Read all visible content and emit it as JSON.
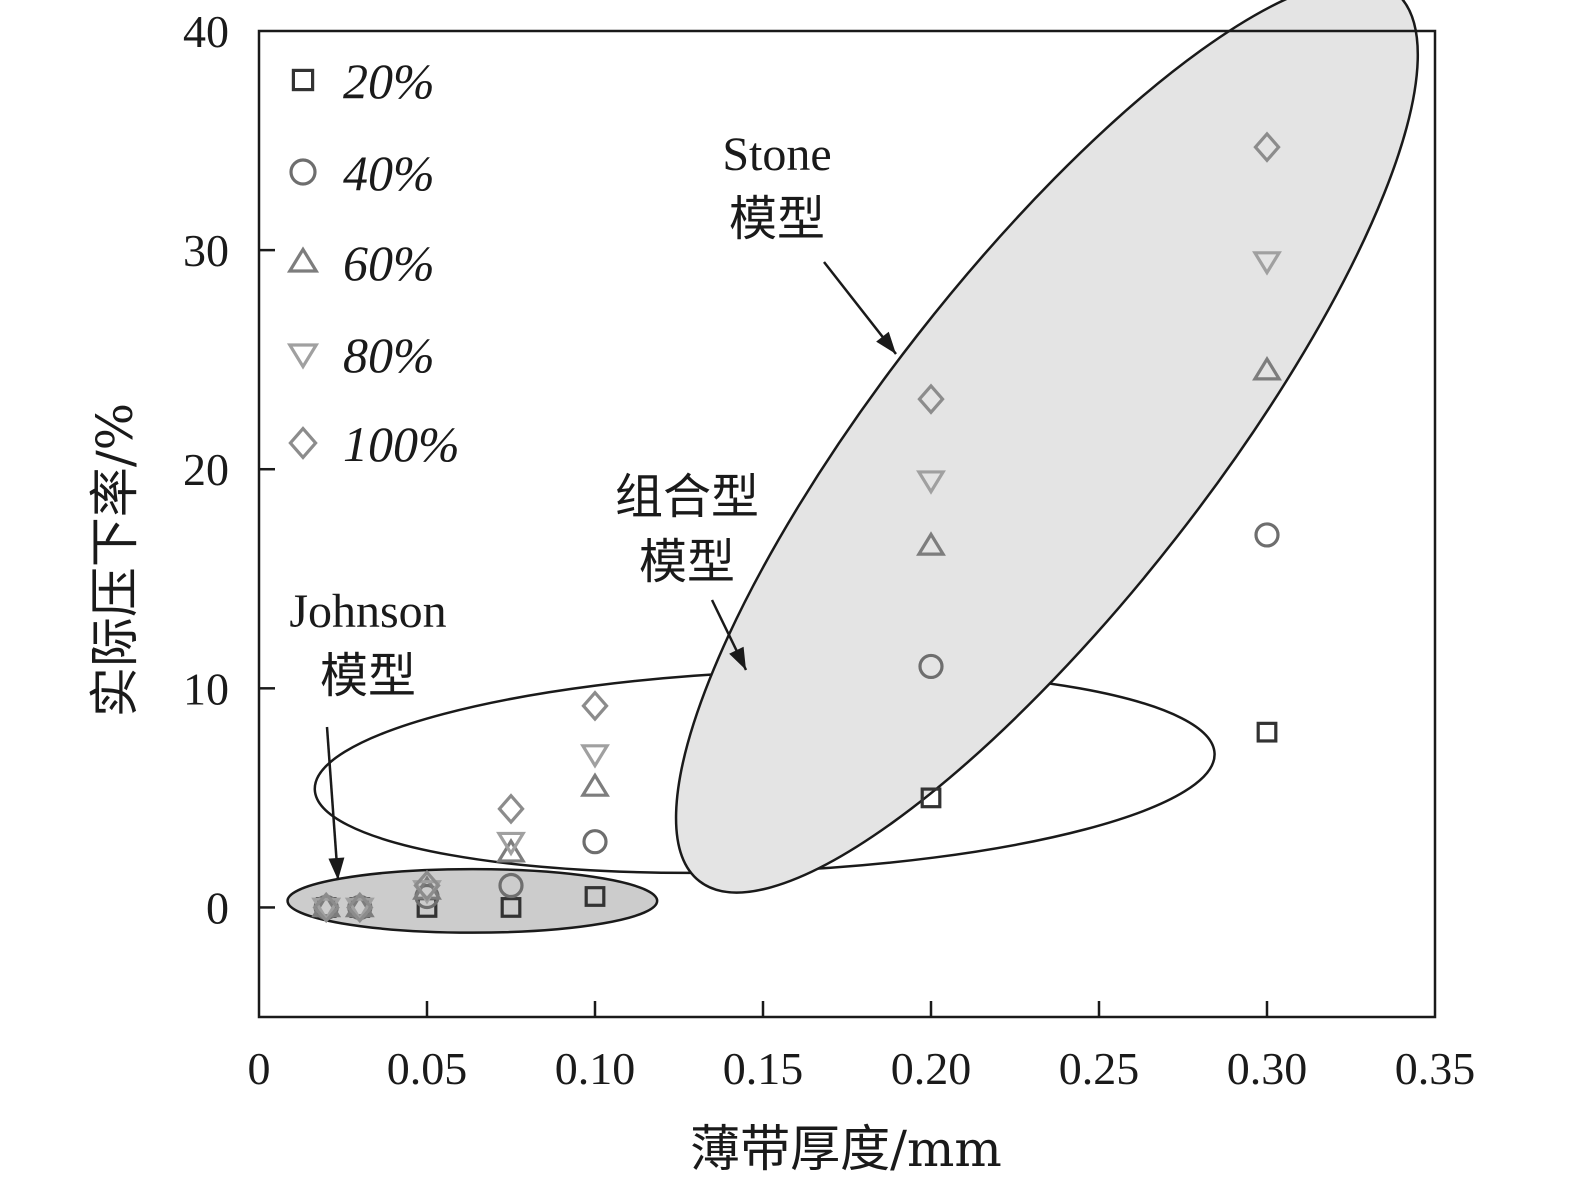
{
  "chart_data": {
    "type": "scatter",
    "xlabel": "薄带厚度/mm",
    "ylabel": "实际压下率/%",
    "xlim": [
      0,
      0.35
    ],
    "ylim": [
      -5,
      40
    ],
    "xticks": [
      "0",
      "0.05",
      "0.10",
      "0.15",
      "0.20",
      "0.25",
      "0.30",
      "0.35"
    ],
    "xtick_values": [
      0,
      0.05,
      0.1,
      0.15,
      0.2,
      0.25,
      0.3,
      0.35
    ],
    "yticks": [
      "0",
      "10",
      "20",
      "30",
      "40"
    ],
    "ytick_values": [
      0,
      10,
      20,
      30,
      40
    ],
    "grid": false,
    "legend_position": "top-left",
    "series": [
      {
        "name": "20%",
        "marker": "square",
        "color": "#333333",
        "x": [
          0.02,
          0.03,
          0.05,
          0.075,
          0.1,
          0.2,
          0.3
        ],
        "y": [
          0.0,
          0.0,
          0.0,
          0.0,
          0.5,
          5.0,
          8.0
        ]
      },
      {
        "name": "40%",
        "marker": "circle",
        "color": "#6e6e6e",
        "x": [
          0.02,
          0.03,
          0.05,
          0.075,
          0.1,
          0.2,
          0.3
        ],
        "y": [
          0.0,
          0.0,
          0.5,
          1.0,
          3.0,
          11.0,
          17.0
        ]
      },
      {
        "name": "60%",
        "marker": "triangle-up",
        "color": "#7d7d7d",
        "x": [
          0.02,
          0.03,
          0.05,
          0.075,
          0.1,
          0.2,
          0.3
        ],
        "y": [
          0.0,
          0.0,
          0.8,
          2.5,
          5.5,
          16.5,
          24.5
        ]
      },
      {
        "name": "80%",
        "marker": "triangle-down",
        "color": "#a0a0a0",
        "x": [
          0.02,
          0.03,
          0.05,
          0.075,
          0.1,
          0.2,
          0.3
        ],
        "y": [
          0.0,
          0.0,
          0.8,
          3.0,
          7.0,
          19.5,
          29.5
        ]
      },
      {
        "name": "100%",
        "marker": "diamond",
        "color": "#8c8c8c",
        "x": [
          0.02,
          0.03,
          0.05,
          0.075,
          0.1,
          0.2,
          0.3
        ],
        "y": [
          0.0,
          0.0,
          1.0,
          4.5,
          9.2,
          23.2,
          34.7
        ]
      }
    ],
    "annotations": [
      {
        "id": "johnson",
        "lines": [
          "Johnson",
          "模型"
        ],
        "fill": "#cccccc",
        "ellipse": {
          "cx": 0.0635,
          "cy": 0.3,
          "rx": 0.055,
          "ry": 1.45,
          "rotation": 0
        }
      },
      {
        "id": "combined",
        "lines": [
          "组合型",
          "模型"
        ],
        "fill": "none",
        "ellipse": {
          "cx": 0.1505,
          "cy": 6.2,
          "rx": 0.134,
          "ry": 4.55,
          "rotation": -2.3
        }
      },
      {
        "id": "stone",
        "lines": [
          "Stone",
          "模型"
        ],
        "fill": "#e4e4e4",
        "ellipse": {
          "cx": 0.2345,
          "cy": 21.5,
          "rx": 0.168,
          "ry": 7.5,
          "rotation": -52
        }
      }
    ]
  }
}
